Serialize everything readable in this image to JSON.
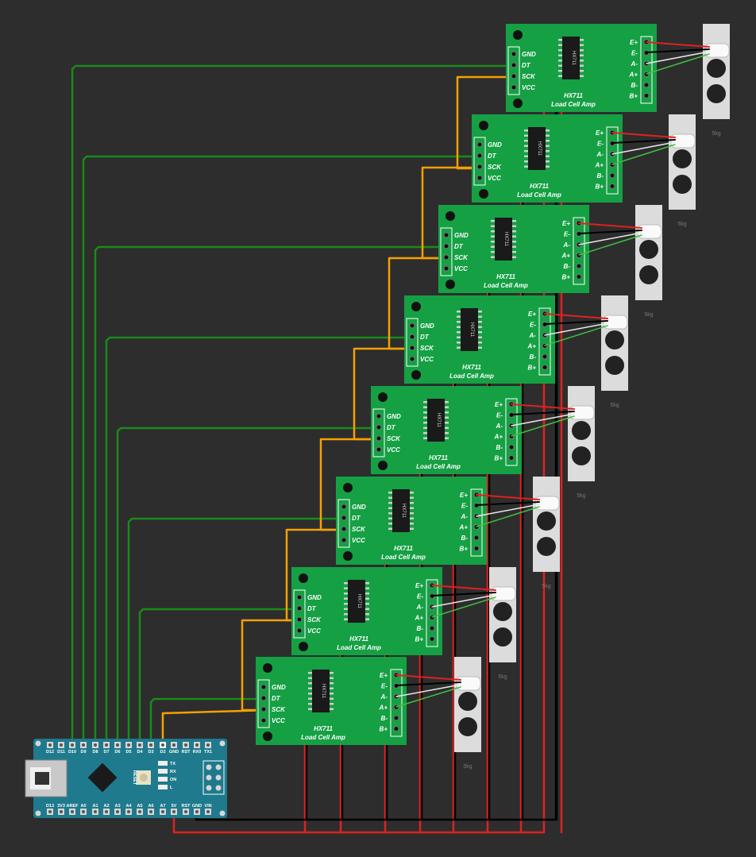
{
  "amp": {
    "chip": "HX711",
    "title_line1": "HX711",
    "title_line2": "Load Cell Amp",
    "left_pins": [
      "GND",
      "DT",
      "SCK",
      "VCC"
    ],
    "right_pins": [
      "E+",
      "E-",
      "A-",
      "A+",
      "B-",
      "B+"
    ]
  },
  "load_cell": {
    "label": "5kg"
  },
  "nano": {
    "top_pins": [
      "D12",
      "D11",
      "D10",
      "D9",
      "D8",
      "D7",
      "D6",
      "D5",
      "D4",
      "D3",
      "D2",
      "GND",
      "RST",
      "RX0",
      "TX1"
    ],
    "bottom_pins": [
      "D13",
      "3V3",
      "AREF",
      "A0",
      "A1",
      "A2",
      "A3",
      "A4",
      "A5",
      "A6",
      "A7",
      "5V",
      "RST",
      "GND",
      "VIN"
    ],
    "led_labels": [
      "TX",
      "RX",
      "ON",
      "L"
    ],
    "reset_label": "RESET"
  },
  "colors": {
    "background": "#2d2d2d",
    "pcb_green": "#15a044",
    "nano_teal": "#1e7a8c",
    "wire_green": "#1a8a1a",
    "wire_orange": "#f5a100",
    "wire_red": "#e02020",
    "wire_black": "#000000",
    "wire_white": "#e8e8e8",
    "load_cell": "#dcdcdc"
  },
  "connections": [
    {
      "amp": 1,
      "dt": "D10",
      "sck": "D2"
    },
    {
      "amp": 2,
      "dt": "D9",
      "sck": "D3"
    },
    {
      "amp": 3,
      "dt": "D8",
      "sck": "D4"
    },
    {
      "amp": 4,
      "dt": "D7",
      "sck": "D5"
    },
    {
      "amp": 5,
      "dt": "D6",
      "sck": "D6"
    },
    {
      "amp": 6,
      "dt": "D5",
      "sck": "D7"
    },
    {
      "amp": 7,
      "dt": "D4",
      "sck": "D8"
    },
    {
      "amp": 8,
      "dt": "D3",
      "sck": "D9"
    }
  ]
}
